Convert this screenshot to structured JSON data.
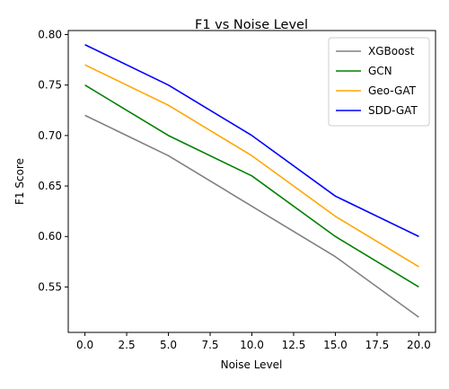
{
  "chart_data": {
    "type": "line",
    "title": "F1 vs Noise Level",
    "xlabel": "Noise Level",
    "ylabel": "F1 Score",
    "x": [
      0,
      5,
      10,
      15,
      20
    ],
    "xlim": [
      -1,
      21
    ],
    "ylim": [
      0.505,
      0.804
    ],
    "xticks": [
      0.0,
      2.5,
      5.0,
      7.5,
      10.0,
      12.5,
      15.0,
      17.5,
      20.0
    ],
    "xtick_labels": [
      "0.0",
      "2.5",
      "5.0",
      "7.5",
      "10.0",
      "12.5",
      "15.0",
      "17.5",
      "20.0"
    ],
    "yticks": [
      0.55,
      0.6,
      0.65,
      0.7,
      0.75,
      0.8
    ],
    "ytick_labels": [
      "0.55",
      "0.60",
      "0.65",
      "0.70",
      "0.75",
      "0.80"
    ],
    "grid": false,
    "legend_position": "top-right",
    "series": [
      {
        "name": "XGBoost",
        "color": "#808080",
        "values": [
          0.72,
          0.68,
          0.63,
          0.58,
          0.52
        ]
      },
      {
        "name": "GCN",
        "color": "#008000",
        "values": [
          0.75,
          0.7,
          0.66,
          0.6,
          0.55
        ]
      },
      {
        "name": "Geo-GAT",
        "color": "#ffa500",
        "values": [
          0.77,
          0.73,
          0.68,
          0.62,
          0.57
        ]
      },
      {
        "name": "SDD-GAT",
        "color": "#0000ff",
        "values": [
          0.79,
          0.75,
          0.7,
          0.64,
          0.6
        ]
      }
    ]
  }
}
